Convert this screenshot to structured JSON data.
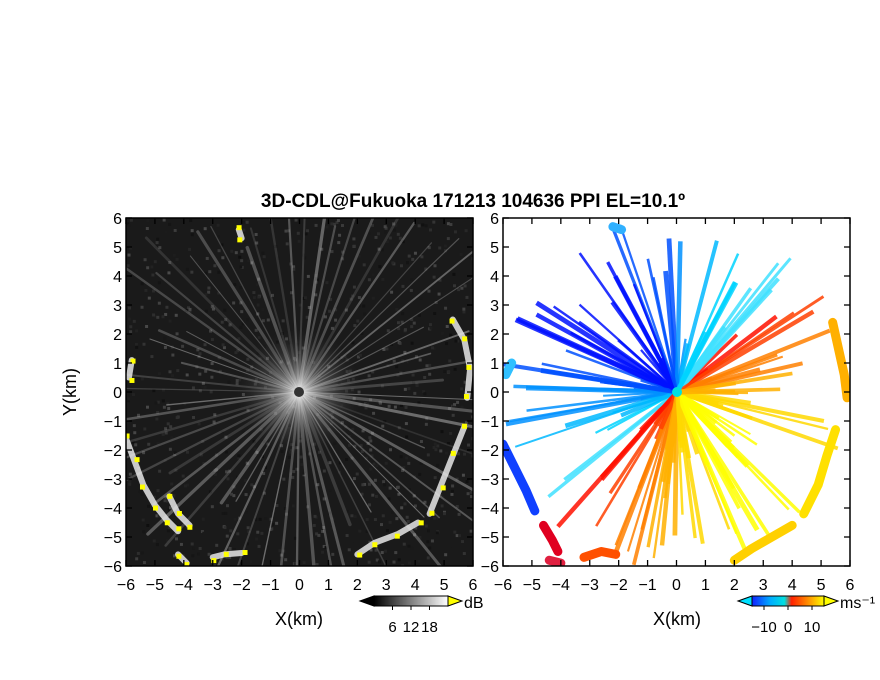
{
  "chart_data": [
    {
      "type": "heatmap",
      "panel": "reflectivity",
      "title": "3D-CDL@Fukuoka 171213 104636 PPI EL=10.1º",
      "xlabel": "X(km)",
      "ylabel": "Y(km)",
      "xlim": [
        -6,
        6
      ],
      "ylim": [
        -6,
        6
      ],
      "x_ticks": [
        "−6",
        "−5",
        "−4",
        "−3",
        "−2",
        "−1",
        "0",
        "1",
        "2",
        "3",
        "4",
        "5",
        "6"
      ],
      "y_ticks": [
        "6",
        "5",
        "4",
        "3",
        "2",
        "1",
        "0",
        "−1",
        "−2",
        "−3",
        "−4",
        "−5",
        "−6"
      ],
      "colormap": [
        "#000000",
        "#ffffff",
        "#ffff00"
      ],
      "colorbar": {
        "unit": "dB",
        "ticks": [
          6,
          12,
          18
        ],
        "tick_labels": [
          "6",
          "12",
          "18"
        ],
        "range": [
          0,
          24
        ]
      },
      "features": "radial clutter streaks from radar center; bright echoes along ring near range 6 km (south-west and east arcs)"
    },
    {
      "type": "heatmap",
      "panel": "doppler velocity",
      "xlabel": "X(km)",
      "xlim": [
        -6,
        6
      ],
      "ylim": [
        -6,
        6
      ],
      "x_ticks": [
        "−6",
        "−5",
        "−4",
        "−3",
        "−2",
        "−1",
        "0",
        "1",
        "2",
        "3",
        "4",
        "5",
        "6"
      ],
      "y_ticks": [
        "6",
        "5",
        "4",
        "3",
        "2",
        "1",
        "0",
        "−1",
        "−2",
        "−3",
        "−4",
        "−5",
        "−6"
      ],
      "colormap": [
        "#0000ff",
        "#00aaff",
        "#00e0e0",
        "#ff0000",
        "#ff8000",
        "#ffff00"
      ],
      "colorbar": {
        "unit": "ms⁻¹",
        "ticks": [
          -10,
          0,
          10
        ],
        "tick_labels": [
          "−10",
          "0",
          "10"
        ],
        "range": [
          -15,
          15
        ]
      },
      "features": "negative (toward radar) velocities to the north-west, positive to the south-east; outer echoes blue in west/south-west, yellow-orange in east/south-east"
    }
  ]
}
